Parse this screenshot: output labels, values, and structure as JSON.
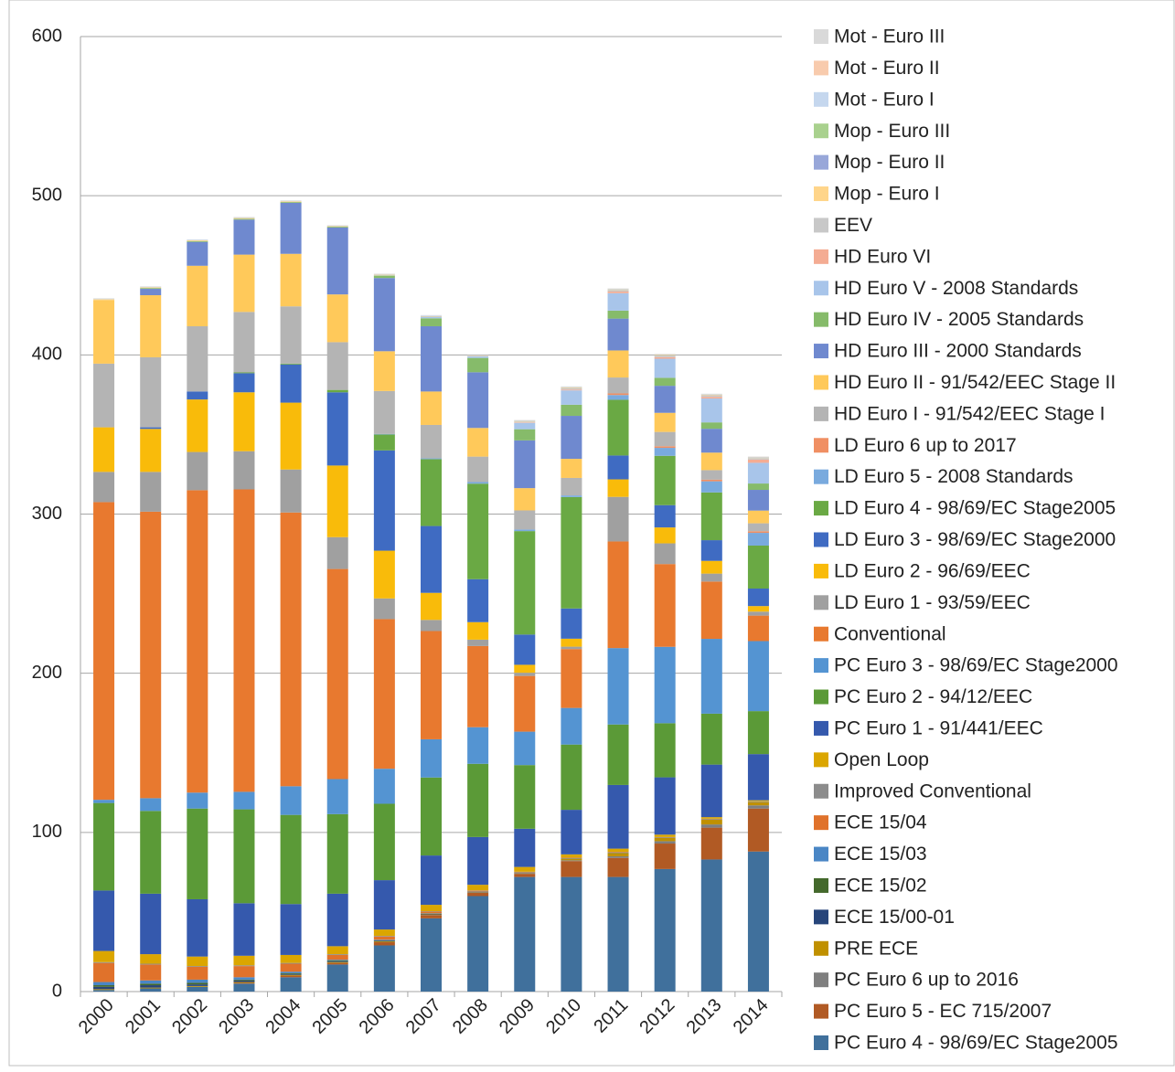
{
  "chart_data": {
    "type": "stacked-bar",
    "categories": [
      "2000",
      "2001",
      "2002",
      "2003",
      "2004",
      "2005",
      "2006",
      "2007",
      "2008",
      "2009",
      "2010",
      "2011",
      "2012",
      "2013",
      "2014"
    ],
    "ylim": [
      0,
      600
    ],
    "yticks": [
      0,
      100,
      200,
      300,
      400,
      500,
      600
    ],
    "grid": true,
    "legend": "right",
    "series": [
      {
        "name": "PC Euro 4 - 98/69/EC Stage2005",
        "color": "#40709c",
        "values": [
          1,
          2,
          3,
          5,
          9,
          17,
          29,
          46,
          60,
          72,
          72,
          72,
          77,
          83,
          88
        ]
      },
      {
        "name": "PC Euro 5 - EC 715/2007",
        "color": "#b15a24",
        "values": [
          0,
          0,
          0,
          0.5,
          1,
          1,
          2,
          2,
          2,
          2,
          10,
          12,
          16,
          20,
          27
        ]
      },
      {
        "name": "PC Euro 6 up to 2016",
        "color": "#7f7f7f",
        "values": [
          0,
          0,
          0,
          0,
          0,
          0,
          0,
          0.2,
          0.3,
          0.3,
          0.5,
          1,
          1.5,
          2,
          2
        ]
      },
      {
        "name": "PRE ECE",
        "color": "#c09000",
        "values": [
          0.5,
          0.5,
          0.5,
          0.5,
          0.5,
          0.5,
          0.5,
          0.3,
          0.2,
          0.2,
          1,
          2,
          2,
          3,
          2
        ]
      },
      {
        "name": "ECE 15/00-01",
        "color": "#27457a",
        "values": [
          1.5,
          1.5,
          1,
          1,
          0.5,
          0.5,
          0.5,
          0.3,
          0.2,
          0.2,
          0.1,
          0.1,
          0.1,
          0.1,
          0.1
        ]
      },
      {
        "name": "ECE 15/02",
        "color": "#44692c",
        "values": [
          1,
          1,
          1,
          0.5,
          0.5,
          0.5,
          0.3,
          0.2,
          0.1,
          0.1,
          0.1,
          0.1,
          0.1,
          0.1,
          0.1
        ]
      },
      {
        "name": "ECE 15/03",
        "color": "#4a86c5",
        "values": [
          2,
          2,
          2,
          1.5,
          1,
          0.5,
          0.3,
          0.2,
          0.1,
          0.1,
          0.1,
          0.1,
          0.1,
          0.1,
          0.1
        ]
      },
      {
        "name": "ECE 15/04",
        "color": "#e0722b",
        "values": [
          12,
          10,
          8,
          7,
          5,
          3,
          2,
          1,
          0.5,
          0.3,
          0.3,
          0.3,
          0.2,
          0.2,
          0.1
        ]
      },
      {
        "name": "Improved Conventional",
        "color": "#8c8c8c",
        "values": [
          0.5,
          0.5,
          0.5,
          0.5,
          0.5,
          0.5,
          0.4,
          0.3,
          0.2,
          0.1,
          0.1,
          0.2,
          0.1,
          0.1,
          0.1
        ]
      },
      {
        "name": "Open Loop",
        "color": "#dba600",
        "values": [
          7,
          6,
          6,
          6,
          5,
          5,
          4,
          4,
          3.5,
          3,
          2,
          2,
          1.5,
          1,
          0.7
        ]
      },
      {
        "name": "PC Euro 1 - 91/441/EEC",
        "color": "#3559ad",
        "values": [
          38,
          38,
          36,
          33,
          32,
          33,
          31,
          31,
          30,
          24,
          28,
          40,
          36,
          33,
          29
        ]
      },
      {
        "name": "PC Euro 2 - 94/12/EEC",
        "color": "#5b9a37",
        "values": [
          55,
          52,
          57,
          59,
          56,
          50,
          48,
          49,
          46,
          40,
          41,
          38,
          34,
          32,
          27
        ]
      },
      {
        "name": "PC Euro 3 - 98/69/EC Stage2000",
        "color": "#5494d2",
        "values": [
          2,
          8,
          10,
          11,
          18,
          22,
          22,
          24,
          23,
          21,
          23,
          48,
          48,
          47,
          44
        ]
      },
      {
        "name": "Conventional",
        "color": "#e8792f",
        "values": [
          187,
          180,
          190,
          190,
          172,
          132,
          94,
          68,
          51,
          35,
          37,
          67,
          52,
          36,
          16
        ]
      },
      {
        "name": "LD Euro 1 - 93/59/EEC",
        "color": "#a0a0a0",
        "values": [
          19,
          25,
          24,
          24,
          27,
          20,
          13,
          7,
          4,
          2,
          1.5,
          28,
          13,
          5,
          2.5
        ]
      },
      {
        "name": "LD Euro 2 - 96/69/EEC",
        "color": "#f9bb0a",
        "values": [
          28,
          27,
          33,
          37,
          42,
          45,
          30,
          17,
          11,
          5,
          5,
          11,
          10,
          8,
          3.5
        ]
      },
      {
        "name": "LD Euro 3 - 98/69/EC Stage2000",
        "color": "#3f6bc2",
        "values": [
          0,
          1,
          5,
          12,
          24,
          46,
          63,
          42,
          27,
          19,
          19,
          15,
          14,
          13,
          11
        ]
      },
      {
        "name": "LD Euro 4 - 98/69/EC Stage2005",
        "color": "#6aa944",
        "values": [
          0,
          0,
          0,
          0.5,
          0.5,
          1.5,
          10,
          42,
          60,
          65,
          70,
          35,
          31,
          30,
          27
        ]
      },
      {
        "name": "LD Euro 5 - 2008 Standards",
        "color": "#79aade",
        "values": [
          0,
          0,
          0,
          0,
          0,
          0,
          0.3,
          0.5,
          1,
          1,
          1,
          3,
          5,
          7,
          8
        ]
      },
      {
        "name": "LD Euro 6 up to 2017",
        "color": "#f08f63",
        "values": [
          0,
          0,
          0,
          0,
          0,
          0,
          0,
          0,
          0,
          0,
          0,
          1,
          1,
          1,
          1
        ]
      },
      {
        "name": "HD Euro I - 91/542/EEC Stage I",
        "color": "#b4b4b4",
        "values": [
          40,
          44,
          41,
          38,
          36,
          30,
          27,
          21,
          16,
          12,
          11,
          10,
          9,
          6,
          5
        ]
      },
      {
        "name": "HD Euro II - 91/542/EEC Stage II",
        "color": "#ffc95a",
        "values": [
          40,
          39,
          38,
          36,
          33,
          30,
          25,
          21,
          18,
          14,
          12,
          17,
          12,
          11,
          8
        ]
      },
      {
        "name": "HD Euro III - 2000 Standards",
        "color": "#6f89cf",
        "values": [
          0,
          4,
          15,
          22,
          32,
          42,
          46,
          41,
          35,
          30,
          27,
          20,
          17,
          15,
          13
        ]
      },
      {
        "name": "HD Euro IV - 2005 Standards",
        "color": "#86bb6a",
        "values": [
          0,
          0.5,
          0.5,
          0.5,
          0.5,
          0.5,
          1.5,
          5,
          9,
          7,
          7,
          5,
          5,
          4,
          4
        ]
      },
      {
        "name": "HD Euro V - 2008 Standards",
        "color": "#a8c5ea",
        "values": [
          0,
          0,
          0,
          0,
          0,
          0,
          0.2,
          1,
          1,
          4,
          9,
          11,
          12,
          15,
          13
        ]
      },
      {
        "name": "HD Euro VI",
        "color": "#f4ac93",
        "values": [
          0,
          0,
          0,
          0,
          0,
          0,
          0,
          0,
          0,
          0.3,
          0.5,
          1,
          1,
          1,
          2
        ]
      },
      {
        "name": "EEV",
        "color": "#c8c8c8",
        "values": [
          0,
          0,
          0,
          0,
          0,
          0,
          0,
          0,
          0,
          0.5,
          1,
          1,
          1,
          1,
          1
        ]
      },
      {
        "name": "Mop - Euro I",
        "color": "#ffd58a",
        "values": [
          0.5,
          0.5,
          0.5,
          0.5,
          0.5,
          0.4,
          0.4,
          0.3,
          0.3,
          0.3,
          0.3,
          0.3,
          0.3,
          0.3,
          0.3
        ]
      },
      {
        "name": "Mop - Euro II",
        "color": "#98a7d9",
        "values": [
          0,
          0,
          0,
          0,
          0,
          0,
          0,
          0.1,
          0.1,
          0.1,
          0.1,
          0.1,
          0.1,
          0.1,
          0.1
        ]
      },
      {
        "name": "Mop - Euro III",
        "color": "#a9d18e",
        "values": [
          0,
          0,
          0,
          0,
          0,
          0,
          0,
          0,
          0,
          0.1,
          0.1,
          0.1,
          0.1,
          0.1,
          0.1
        ]
      },
      {
        "name": "Mot - Euro I",
        "color": "#c5d7ee",
        "values": [
          0.3,
          0.3,
          0.3,
          0.3,
          0.3,
          0.3,
          0.3,
          0.3,
          0.2,
          0.2,
          0.2,
          0.2,
          0.2,
          0.2,
          0.2
        ]
      },
      {
        "name": "Mot - Euro II",
        "color": "#f8cbad",
        "values": [
          0,
          0,
          0,
          0,
          0,
          0,
          0,
          0,
          0,
          0.1,
          0.1,
          0.1,
          0.1,
          0.1,
          0.1
        ]
      },
      {
        "name": "Mot - Euro III",
        "color": "#d9d9d9",
        "values": [
          0.3,
          0.3,
          0.3,
          0.3,
          0.3,
          0.3,
          0.3,
          0.3,
          0.2,
          0.2,
          0.2,
          0.2,
          0.2,
          0.2,
          0.2
        ]
      }
    ]
  }
}
